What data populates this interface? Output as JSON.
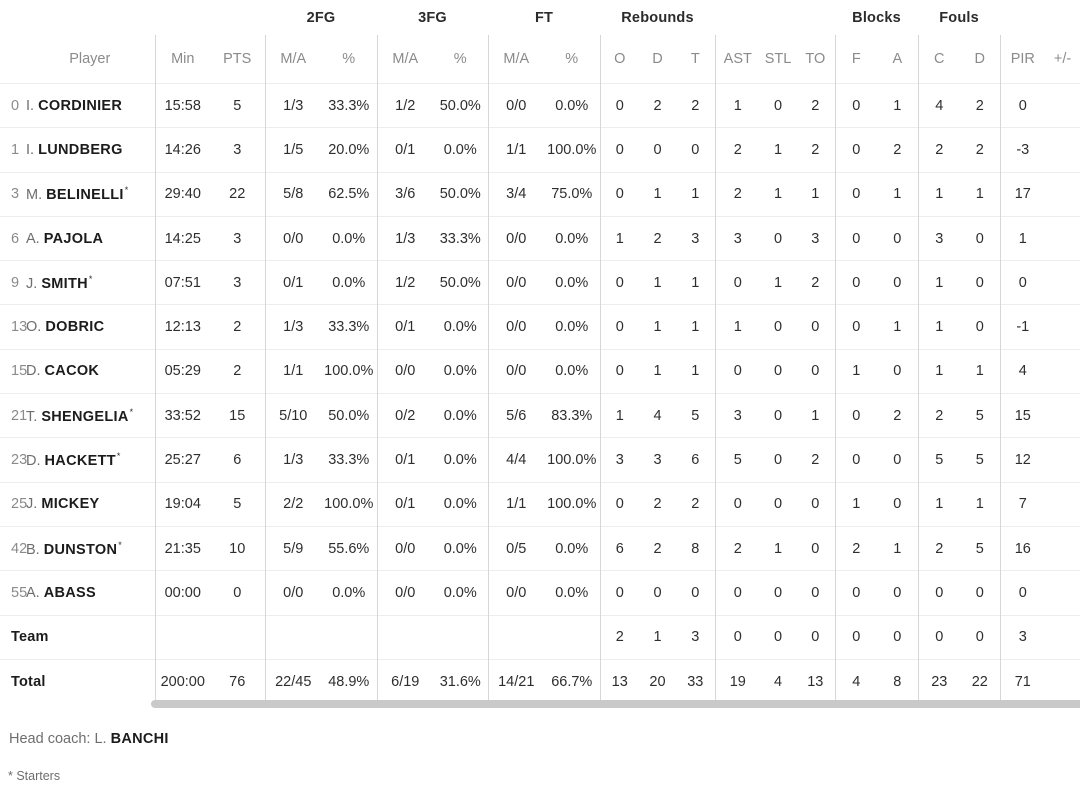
{
  "table": {
    "group_headers": {
      "fg2": "2FG",
      "fg3": "3FG",
      "ft": "FT",
      "rebounds": "Rebounds",
      "blocks": "Blocks",
      "fouls": "Fouls"
    },
    "columns": {
      "player": "Player",
      "min": "Min",
      "pts": "PTS",
      "ma2": "M/A",
      "pct2": "%",
      "ma3": "M/A",
      "pct3": "%",
      "maft": "M/A",
      "pctft": "%",
      "o": "O",
      "d": "D",
      "t": "T",
      "ast": "AST",
      "stl": "STL",
      "to": "TO",
      "f": "F",
      "a": "A",
      "c": "C",
      "d2": "D",
      "pir": "PIR",
      "pm": "+/-"
    },
    "rows": [
      {
        "num": "0",
        "initial": "I.",
        "name": "CORDINIER",
        "starter": false,
        "min": "15:58",
        "pts": "5",
        "fg2": "1/3",
        "fg2p": "33.3%",
        "fg3": "1/2",
        "fg3p": "50.0%",
        "ft": "0/0",
        "ftp": "0.0%",
        "ro": "0",
        "rd": "2",
        "rt": "2",
        "ast": "1",
        "stl": "0",
        "to": "2",
        "bf": "0",
        "ba": "1",
        "fc": "4",
        "fd": "2",
        "pir": "0",
        "pm": ""
      },
      {
        "num": "1",
        "initial": "I.",
        "name": "LUNDBERG",
        "starter": false,
        "min": "14:26",
        "pts": "3",
        "fg2": "1/5",
        "fg2p": "20.0%",
        "fg3": "0/1",
        "fg3p": "0.0%",
        "ft": "1/1",
        "ftp": "100.0%",
        "ro": "0",
        "rd": "0",
        "rt": "0",
        "ast": "2",
        "stl": "1",
        "to": "2",
        "bf": "0",
        "ba": "2",
        "fc": "2",
        "fd": "2",
        "pir": "-3",
        "pm": ""
      },
      {
        "num": "3",
        "initial": "M.",
        "name": "BELINELLI",
        "starter": true,
        "min": "29:40",
        "pts": "22",
        "fg2": "5/8",
        "fg2p": "62.5%",
        "fg3": "3/6",
        "fg3p": "50.0%",
        "ft": "3/4",
        "ftp": "75.0%",
        "ro": "0",
        "rd": "1",
        "rt": "1",
        "ast": "2",
        "stl": "1",
        "to": "1",
        "bf": "0",
        "ba": "1",
        "fc": "1",
        "fd": "1",
        "pir": "17",
        "pm": ""
      },
      {
        "num": "6",
        "initial": "A.",
        "name": "PAJOLA",
        "starter": false,
        "min": "14:25",
        "pts": "3",
        "fg2": "0/0",
        "fg2p": "0.0%",
        "fg3": "1/3",
        "fg3p": "33.3%",
        "ft": "0/0",
        "ftp": "0.0%",
        "ro": "1",
        "rd": "2",
        "rt": "3",
        "ast": "3",
        "stl": "0",
        "to": "3",
        "bf": "0",
        "ba": "0",
        "fc": "3",
        "fd": "0",
        "pir": "1",
        "pm": ""
      },
      {
        "num": "9",
        "initial": "J.",
        "name": "SMITH",
        "starter": true,
        "min": "07:51",
        "pts": "3",
        "fg2": "0/1",
        "fg2p": "0.0%",
        "fg3": "1/2",
        "fg3p": "50.0%",
        "ft": "0/0",
        "ftp": "0.0%",
        "ro": "0",
        "rd": "1",
        "rt": "1",
        "ast": "0",
        "stl": "1",
        "to": "2",
        "bf": "0",
        "ba": "0",
        "fc": "1",
        "fd": "0",
        "pir": "0",
        "pm": ""
      },
      {
        "num": "13",
        "initial": "O.",
        "name": "DOBRIC",
        "starter": false,
        "min": "12:13",
        "pts": "2",
        "fg2": "1/3",
        "fg2p": "33.3%",
        "fg3": "0/1",
        "fg3p": "0.0%",
        "ft": "0/0",
        "ftp": "0.0%",
        "ro": "0",
        "rd": "1",
        "rt": "1",
        "ast": "1",
        "stl": "0",
        "to": "0",
        "bf": "0",
        "ba": "1",
        "fc": "1",
        "fd": "0",
        "pir": "-1",
        "pm": ""
      },
      {
        "num": "15",
        "initial": "D.",
        "name": "CACOK",
        "starter": false,
        "min": "05:29",
        "pts": "2",
        "fg2": "1/1",
        "fg2p": "100.0%",
        "fg3": "0/0",
        "fg3p": "0.0%",
        "ft": "0/0",
        "ftp": "0.0%",
        "ro": "0",
        "rd": "1",
        "rt": "1",
        "ast": "0",
        "stl": "0",
        "to": "0",
        "bf": "1",
        "ba": "0",
        "fc": "1",
        "fd": "1",
        "pir": "4",
        "pm": ""
      },
      {
        "num": "21",
        "initial": "T.",
        "name": "SHENGELIA",
        "starter": true,
        "min": "33:52",
        "pts": "15",
        "fg2": "5/10",
        "fg2p": "50.0%",
        "fg3": "0/2",
        "fg3p": "0.0%",
        "ft": "5/6",
        "ftp": "83.3%",
        "ro": "1",
        "rd": "4",
        "rt": "5",
        "ast": "3",
        "stl": "0",
        "to": "1",
        "bf": "0",
        "ba": "2",
        "fc": "2",
        "fd": "5",
        "pir": "15",
        "pm": ""
      },
      {
        "num": "23",
        "initial": "D.",
        "name": "HACKETT",
        "starter": true,
        "min": "25:27",
        "pts": "6",
        "fg2": "1/3",
        "fg2p": "33.3%",
        "fg3": "0/1",
        "fg3p": "0.0%",
        "ft": "4/4",
        "ftp": "100.0%",
        "ro": "3",
        "rd": "3",
        "rt": "6",
        "ast": "5",
        "stl": "0",
        "to": "2",
        "bf": "0",
        "ba": "0",
        "fc": "5",
        "fd": "5",
        "pir": "12",
        "pm": ""
      },
      {
        "num": "25",
        "initial": "J.",
        "name": "MICKEY",
        "starter": false,
        "min": "19:04",
        "pts": "5",
        "fg2": "2/2",
        "fg2p": "100.0%",
        "fg3": "0/1",
        "fg3p": "0.0%",
        "ft": "1/1",
        "ftp": "100.0%",
        "ro": "0",
        "rd": "2",
        "rt": "2",
        "ast": "0",
        "stl": "0",
        "to": "0",
        "bf": "1",
        "ba": "0",
        "fc": "1",
        "fd": "1",
        "pir": "7",
        "pm": ""
      },
      {
        "num": "42",
        "initial": "B.",
        "name": "DUNSTON",
        "starter": true,
        "min": "21:35",
        "pts": "10",
        "fg2": "5/9",
        "fg2p": "55.6%",
        "fg3": "0/0",
        "fg3p": "0.0%",
        "ft": "0/5",
        "ftp": "0.0%",
        "ro": "6",
        "rd": "2",
        "rt": "8",
        "ast": "2",
        "stl": "1",
        "to": "0",
        "bf": "2",
        "ba": "1",
        "fc": "2",
        "fd": "5",
        "pir": "16",
        "pm": ""
      },
      {
        "num": "55",
        "initial": "A.",
        "name": "ABASS",
        "starter": false,
        "min": "00:00",
        "pts": "0",
        "fg2": "0/0",
        "fg2p": "0.0%",
        "fg3": "0/0",
        "fg3p": "0.0%",
        "ft": "0/0",
        "ftp": "0.0%",
        "ro": "0",
        "rd": "0",
        "rt": "0",
        "ast": "0",
        "stl": "0",
        "to": "0",
        "bf": "0",
        "ba": "0",
        "fc": "0",
        "fd": "0",
        "pir": "0",
        "pm": ""
      },
      {
        "label": "Team",
        "min": "",
        "pts": "",
        "fg2": "",
        "fg2p": "",
        "fg3": "",
        "fg3p": "",
        "ft": "",
        "ftp": "",
        "ro": "2",
        "rd": "1",
        "rt": "3",
        "ast": "0",
        "stl": "0",
        "to": "0",
        "bf": "0",
        "ba": "0",
        "fc": "0",
        "fd": "0",
        "pir": "3",
        "pm": ""
      },
      {
        "label": "Total",
        "min": "200:00",
        "pts": "76",
        "fg2": "22/45",
        "fg2p": "48.9%",
        "fg3": "6/19",
        "fg3p": "31.6%",
        "ft": "14/21",
        "ftp": "66.7%",
        "ro": "13",
        "rd": "20",
        "rt": "33",
        "ast": "19",
        "stl": "4",
        "to": "13",
        "bf": "4",
        "ba": "8",
        "fc": "23",
        "fd": "22",
        "pir": "71",
        "pm": ""
      }
    ]
  },
  "footer": {
    "head_coach_label": "Head coach: ",
    "head_coach_initial": "L.",
    "head_coach_name": "BANCHI",
    "starters_note": "* Starters"
  },
  "colors": {
    "text_dark": "#2e2e2e",
    "text_gray": "#8b8b8b",
    "divider": "#d6d6d6",
    "row_separator": "#ededed",
    "scrollbar": "#c9c9c9",
    "background": "#ffffff"
  }
}
